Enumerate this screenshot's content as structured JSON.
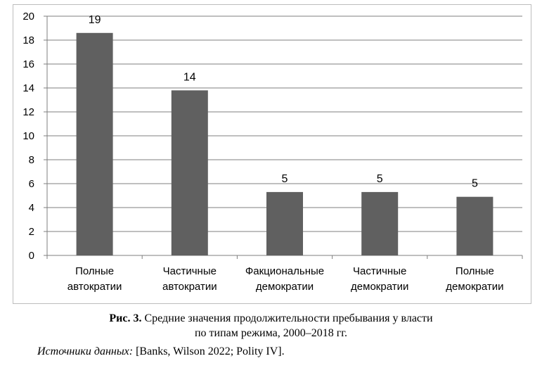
{
  "chart_data": {
    "type": "bar",
    "categories": [
      [
        "Полные",
        "автократии"
      ],
      [
        "Частичные",
        "автократии"
      ],
      [
        "Факциональные",
        "демократии"
      ],
      [
        "Частичные",
        "демократии"
      ],
      [
        "Полные",
        "демократии"
      ]
    ],
    "values": [
      18.6,
      13.8,
      5.3,
      5.3,
      4.9
    ],
    "data_labels": [
      "19",
      "14",
      "5",
      "5",
      "5"
    ],
    "ylim": [
      0,
      20
    ],
    "yticks": [
      "0",
      "2",
      "4",
      "6",
      "8",
      "10",
      "12",
      "14",
      "16",
      "18",
      "20"
    ],
    "grid": true,
    "bar_color": "#606060",
    "grid_color": "#7f7f7f"
  },
  "caption": {
    "figure_number": "Рис. 3.",
    "line1": "Средние значения продолжительности пребывания у власти",
    "line2": "по типам режима, 2000–2018 гг."
  },
  "source": {
    "label": "Источники данных:",
    "text": "[Banks, Wilson 2022; Polity IV]."
  }
}
